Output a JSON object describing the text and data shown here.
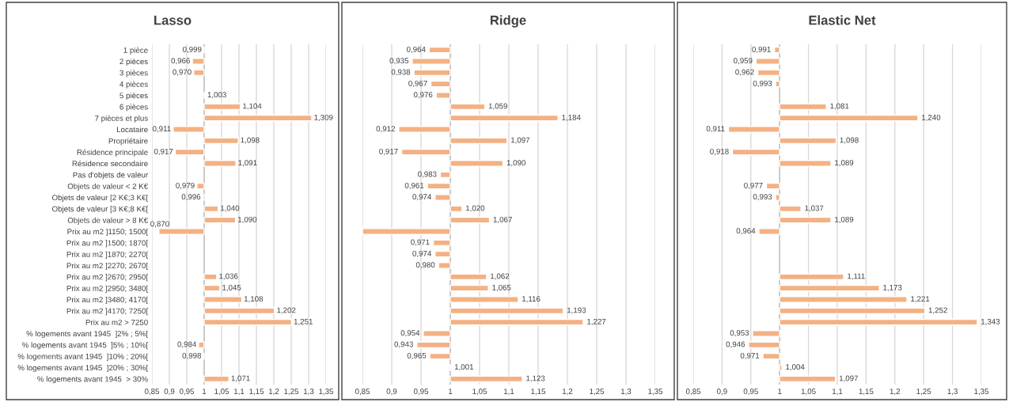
{
  "chart_data": [
    {
      "type": "bar",
      "title": "Lasso",
      "orientation": "horizontal",
      "categories": [
        "1 pièce",
        "2 pièces",
        "3 pièces",
        "4 pièces",
        "5 pièces",
        "6 pièces",
        "7 pièces et plus",
        "Locataire",
        "Propriétaire",
        "Résidence principale",
        "Résidence secondaire",
        "Pas d'objets de valeur",
        "Objets de valeur < 2 K€",
        "Objets de valeur [2 K€;3 K€[",
        "Objets de valeur [3 K€;8 K€[",
        "Objets de valeur > 8 K€",
        "Prix au m2 ]1150; 1500[",
        "Prix au m2 ]1500; 1870[",
        "Prix au m2 ]1870; 2270[",
        "Prix au m2 ]2270; 2670[",
        "Prix au m2 ]2670; 2950[",
        "Prix au m2 ]2950; 3480[",
        "Prix au m2 ]3480; 4170[",
        "Prix au m2 ]4170; 7250[",
        "Prix au m2 > 7250",
        "% logements avant 1945  ]2% ; 5%[",
        "% logements avant 1945  ]5% ; 10%[",
        "% logements avant 1945  ]10% ; 20%[",
        "% logements avant 1945  ]20% ; 30%[",
        "% logements avant 1945  > 30%"
      ],
      "base": [
        1,
        1,
        1,
        null,
        1,
        1,
        1,
        1,
        1,
        1,
        1,
        null,
        1,
        1,
        1,
        1,
        1,
        null,
        null,
        null,
        1,
        1,
        1,
        1,
        1,
        null,
        1,
        1,
        null,
        1
      ],
      "values": [
        -0.001,
        -0.034,
        -0.03,
        null,
        0.003,
        0.104,
        0.309,
        -0.089,
        0.098,
        -0.083,
        0.091,
        null,
        -0.021,
        -0.004,
        0.04,
        0.09,
        -0.13,
        null,
        null,
        null,
        0.036,
        0.045,
        0.108,
        0.202,
        0.251,
        null,
        -0.016,
        -0.002,
        null,
        0.071
      ],
      "value_labels": [
        "0,999",
        "0,966",
        "0,970",
        null,
        "1,003",
        "1,104",
        "1,309",
        "0,911",
        "1,098",
        "0,917",
        "1,091",
        null,
        "0,979",
        "0,996",
        "1,040",
        "1,090",
        "0,870",
        null,
        null,
        null,
        "1,036",
        "1,045",
        "1,108",
        "1,202",
        "1,251",
        null,
        "0,984",
        "0,998",
        null,
        "1,071"
      ],
      "color": "#f4b183",
      "xlim": [
        0.85,
        1.35
      ],
      "xticks": [
        {
          "value": 0.85,
          "label": "0,85"
        },
        {
          "value": 0.9,
          "label": "0,9"
        },
        {
          "value": 0.95,
          "label": "0,95"
        },
        1,
        {
          "value": 1.05,
          "label": "1,05"
        },
        {
          "value": 1.1,
          "label": "1,1"
        },
        {
          "value": 1.15,
          "label": "1,15"
        },
        {
          "value": 1.2,
          "label": "1,2"
        },
        {
          "value": 1.25,
          "label": "1,25"
        },
        {
          "value": 1.3,
          "label": "1,3"
        },
        {
          "value": 1.35,
          "label": "1,35"
        }
      ],
      "ref_lines": [
        {
          "axis": "x",
          "value": 1,
          "color": "#bfbfbf"
        }
      ],
      "grid": "x"
    },
    {
      "type": "bar",
      "title": "Ridge",
      "orientation": "horizontal",
      "tick_labels": "x",
      "categories": [
        null,
        null,
        null,
        null,
        null,
        null,
        null,
        null,
        null,
        null,
        null,
        null,
        null,
        null,
        null,
        null,
        null,
        null,
        null,
        null,
        null,
        null,
        null,
        null,
        null,
        null,
        null,
        null,
        null,
        null
      ],
      "base": [
        1,
        1,
        1,
        1,
        1,
        1,
        1,
        1,
        1,
        1,
        1,
        1,
        1,
        1,
        1,
        1,
        1,
        1,
        1,
        1,
        1,
        1,
        1,
        1,
        1,
        1,
        1,
        1,
        1,
        1
      ],
      "values": [
        -0.036,
        -0.065,
        -0.062,
        -0.033,
        -0.024,
        0.059,
        0.184,
        -0.088,
        0.097,
        -0.083,
        0.09,
        -0.017,
        -0.039,
        -0.026,
        0.02,
        0.067,
        -0.15,
        -0.029,
        -0.026,
        -0.02,
        0.062,
        0.065,
        0.116,
        0.193,
        0.227,
        -0.046,
        -0.057,
        -0.035,
        0.001,
        0.123
      ],
      "value_labels": [
        "0,964",
        "0,935",
        "0,938",
        "0,967",
        "0,976",
        "1,059",
        "1,184",
        "0,912",
        "1,097",
        "0,917",
        "1,090",
        "0,983",
        "0,961",
        "0,974",
        "1,020",
        "1,067",
        null,
        "0,971",
        "0,974",
        "0,980",
        "1,062",
        "1,065",
        "1,116",
        "1,193",
        "1,227",
        "0,954",
        "0,943",
        "0,965",
        "1,001",
        "1,123"
      ],
      "color": "#f4b183",
      "xlim": [
        0.85,
        1.35
      ],
      "xticks": [
        {
          "value": 0.85,
          "label": "0,85"
        },
        {
          "value": 0.9,
          "label": "0,9"
        },
        {
          "value": 0.95,
          "label": "0,95"
        },
        1,
        {
          "value": 1.05,
          "label": "1,05"
        },
        {
          "value": 1.1,
          "label": "1,1"
        },
        {
          "value": 1.15,
          "label": "1,15"
        },
        {
          "value": 1.2,
          "label": "1,2"
        },
        {
          "value": 1.25,
          "label": "1,25"
        },
        {
          "value": 1.3,
          "label": "1,3"
        },
        {
          "value": 1.35,
          "label": "1,35"
        }
      ],
      "ref_lines": [
        {
          "axis": "x",
          "value": 1,
          "color": "#bfbfbf"
        }
      ],
      "grid": "x"
    },
    {
      "type": "bar",
      "title": "Elastic Net",
      "orientation": "horizontal",
      "tick_labels": "x",
      "categories": [
        null,
        null,
        null,
        null,
        null,
        null,
        null,
        null,
        null,
        null,
        null,
        null,
        null,
        null,
        null,
        null,
        null,
        null,
        null,
        null,
        null,
        null,
        null,
        null,
        null,
        null,
        null,
        null,
        null,
        null
      ],
      "base": [
        1,
        1,
        1,
        1,
        null,
        1,
        1,
        1,
        1,
        1,
        1,
        null,
        1,
        1,
        1,
        1,
        1,
        null,
        null,
        null,
        1,
        1,
        1,
        1,
        1,
        1,
        1,
        1,
        1,
        1
      ],
      "values": [
        -0.009,
        -0.041,
        -0.038,
        -0.007,
        null,
        0.081,
        0.24,
        -0.089,
        0.098,
        -0.082,
        0.089,
        null,
        -0.023,
        -0.007,
        0.037,
        0.089,
        -0.036,
        null,
        null,
        null,
        0.111,
        0.173,
        0.221,
        0.252,
        0.343,
        -0.047,
        -0.054,
        -0.029,
        0.004,
        0.097
      ],
      "value_labels": [
        "0,991",
        "0,959",
        "0,962",
        "0,993",
        null,
        "1,081",
        "1,240",
        "0,911",
        "1,098",
        "0,918",
        "1,089",
        null,
        "0,977",
        "0,993",
        "1,037",
        "1,089",
        "0,964",
        null,
        null,
        null,
        "1,111",
        "1,173",
        "1,221",
        "1,252",
        "1,343",
        "0,953",
        "0,946",
        "0,971",
        "1,004",
        "1,097"
      ],
      "color": "#f4b183",
      "xlim": [
        0.85,
        1.35
      ],
      "xticks": [
        {
          "value": 0.85,
          "label": "0,85"
        },
        {
          "value": 0.9,
          "label": "0,9"
        },
        {
          "value": 0.95,
          "label": "0,95"
        },
        1,
        {
          "value": 1.05,
          "label": "1,05"
        },
        {
          "value": 1.1,
          "label": "1,1"
        },
        {
          "value": 1.15,
          "label": "1,15"
        },
        {
          "value": 1.2,
          "label": "1,2"
        },
        {
          "value": 1.25,
          "label": "1,25"
        },
        {
          "value": 1.3,
          "label": "1,3"
        },
        {
          "value": 1.35,
          "label": "1,35"
        }
      ],
      "ref_lines": [
        {
          "axis": "x",
          "value": 1,
          "color": "#bfbfbf"
        }
      ],
      "grid": "x"
    }
  ]
}
